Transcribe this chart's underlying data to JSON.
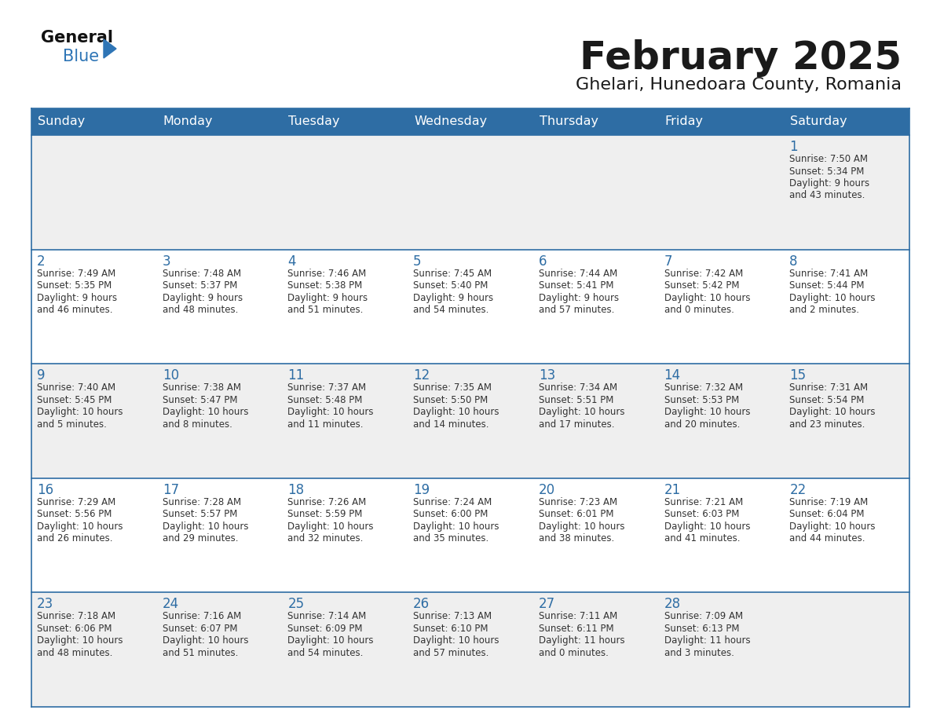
{
  "title": "February 2025",
  "subtitle": "Ghelari, Hunedoara County, Romania",
  "days_of_week": [
    "Sunday",
    "Monday",
    "Tuesday",
    "Wednesday",
    "Thursday",
    "Friday",
    "Saturday"
  ],
  "header_bg": "#2E6DA4",
  "header_text": "#FFFFFF",
  "row_colors": [
    "#EFEFEF",
    "#FFFFFF",
    "#EFEFEF",
    "#FFFFFF",
    "#EFEFEF"
  ],
  "cell_text": "#333333",
  "day_number_color": "#2E6DA4",
  "border_color": "#2E6DA4",
  "title_color": "#1a1a1a",
  "subtitle_color": "#1a1a1a",
  "logo_general_color": "#111111",
  "logo_blue_color": "#2E75B6",
  "logo_triangle_color": "#2E75B6",
  "calendar": [
    [
      null,
      null,
      null,
      null,
      null,
      null,
      {
        "day": 1,
        "sunrise": "7:50 AM",
        "sunset": "5:34 PM",
        "daylight": "9 hours and 43 minutes."
      }
    ],
    [
      {
        "day": 2,
        "sunrise": "7:49 AM",
        "sunset": "5:35 PM",
        "daylight": "9 hours and 46 minutes."
      },
      {
        "day": 3,
        "sunrise": "7:48 AM",
        "sunset": "5:37 PM",
        "daylight": "9 hours and 48 minutes."
      },
      {
        "day": 4,
        "sunrise": "7:46 AM",
        "sunset": "5:38 PM",
        "daylight": "9 hours and 51 minutes."
      },
      {
        "day": 5,
        "sunrise": "7:45 AM",
        "sunset": "5:40 PM",
        "daylight": "9 hours and 54 minutes."
      },
      {
        "day": 6,
        "sunrise": "7:44 AM",
        "sunset": "5:41 PM",
        "daylight": "9 hours and 57 minutes."
      },
      {
        "day": 7,
        "sunrise": "7:42 AM",
        "sunset": "5:42 PM",
        "daylight": "10 hours and 0 minutes."
      },
      {
        "day": 8,
        "sunrise": "7:41 AM",
        "sunset": "5:44 PM",
        "daylight": "10 hours and 2 minutes."
      }
    ],
    [
      {
        "day": 9,
        "sunrise": "7:40 AM",
        "sunset": "5:45 PM",
        "daylight": "10 hours and 5 minutes."
      },
      {
        "day": 10,
        "sunrise": "7:38 AM",
        "sunset": "5:47 PM",
        "daylight": "10 hours and 8 minutes."
      },
      {
        "day": 11,
        "sunrise": "7:37 AM",
        "sunset": "5:48 PM",
        "daylight": "10 hours and 11 minutes."
      },
      {
        "day": 12,
        "sunrise": "7:35 AM",
        "sunset": "5:50 PM",
        "daylight": "10 hours and 14 minutes."
      },
      {
        "day": 13,
        "sunrise": "7:34 AM",
        "sunset": "5:51 PM",
        "daylight": "10 hours and 17 minutes."
      },
      {
        "day": 14,
        "sunrise": "7:32 AM",
        "sunset": "5:53 PM",
        "daylight": "10 hours and 20 minutes."
      },
      {
        "day": 15,
        "sunrise": "7:31 AM",
        "sunset": "5:54 PM",
        "daylight": "10 hours and 23 minutes."
      }
    ],
    [
      {
        "day": 16,
        "sunrise": "7:29 AM",
        "sunset": "5:56 PM",
        "daylight": "10 hours and 26 minutes."
      },
      {
        "day": 17,
        "sunrise": "7:28 AM",
        "sunset": "5:57 PM",
        "daylight": "10 hours and 29 minutes."
      },
      {
        "day": 18,
        "sunrise": "7:26 AM",
        "sunset": "5:59 PM",
        "daylight": "10 hours and 32 minutes."
      },
      {
        "day": 19,
        "sunrise": "7:24 AM",
        "sunset": "6:00 PM",
        "daylight": "10 hours and 35 minutes."
      },
      {
        "day": 20,
        "sunrise": "7:23 AM",
        "sunset": "6:01 PM",
        "daylight": "10 hours and 38 minutes."
      },
      {
        "day": 21,
        "sunrise": "7:21 AM",
        "sunset": "6:03 PM",
        "daylight": "10 hours and 41 minutes."
      },
      {
        "day": 22,
        "sunrise": "7:19 AM",
        "sunset": "6:04 PM",
        "daylight": "10 hours and 44 minutes."
      }
    ],
    [
      {
        "day": 23,
        "sunrise": "7:18 AM",
        "sunset": "6:06 PM",
        "daylight": "10 hours and 48 minutes."
      },
      {
        "day": 24,
        "sunrise": "7:16 AM",
        "sunset": "6:07 PM",
        "daylight": "10 hours and 51 minutes."
      },
      {
        "day": 25,
        "sunrise": "7:14 AM",
        "sunset": "6:09 PM",
        "daylight": "10 hours and 54 minutes."
      },
      {
        "day": 26,
        "sunrise": "7:13 AM",
        "sunset": "6:10 PM",
        "daylight": "10 hours and 57 minutes."
      },
      {
        "day": 27,
        "sunrise": "7:11 AM",
        "sunset": "6:11 PM",
        "daylight": "11 hours and 0 minutes."
      },
      {
        "day": 28,
        "sunrise": "7:09 AM",
        "sunset": "6:13 PM",
        "daylight": "11 hours and 3 minutes."
      },
      null
    ]
  ]
}
